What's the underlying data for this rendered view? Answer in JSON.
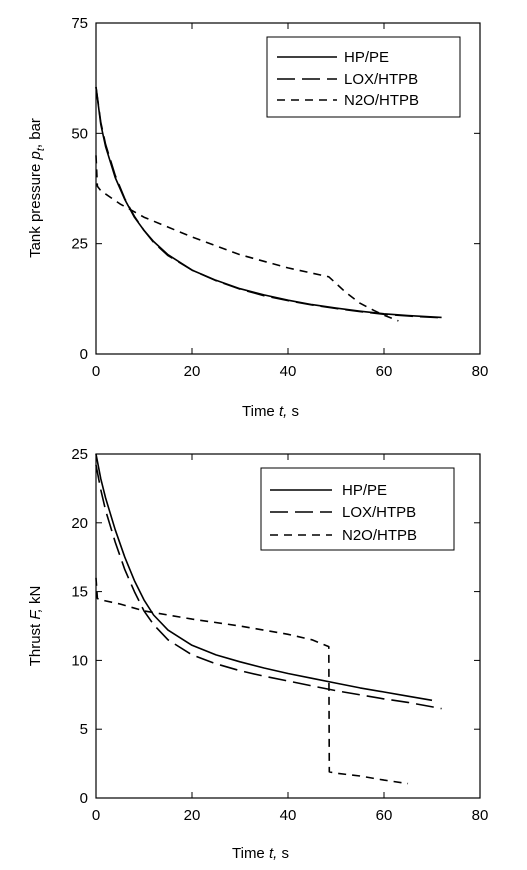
{
  "chart_data": [
    {
      "type": "line",
      "xlabel_prefix": "Time",
      "xlabel_var": "t,",
      "xlabel_unit": "s",
      "ylabel_prefix": "Tank pressure",
      "ylabel_var": "p",
      "ylabel_sub": "t",
      "ylabel_unit": ", bar",
      "xlim": [
        0,
        80
      ],
      "ylim": [
        0,
        75
      ],
      "xticks": [
        0,
        20,
        40,
        60,
        80
      ],
      "yticks": [
        0,
        25,
        50,
        75
      ],
      "grid": false,
      "legend_position": "top-right",
      "series": [
        {
          "name": "HP/PE",
          "style": "solid",
          "x": [
            0,
            1,
            2,
            4,
            6,
            8,
            10,
            12,
            15,
            20,
            25,
            30,
            35,
            40,
            45,
            50,
            55,
            60,
            65,
            72
          ],
          "y": [
            60.5,
            52,
            47,
            40,
            35,
            31,
            28,
            25.5,
            22.5,
            19,
            16.7,
            14.8,
            13.4,
            12.2,
            11.2,
            10.4,
            9.7,
            9.1,
            8.7,
            8.3
          ]
        },
        {
          "name": "LOX/HTPB",
          "style": "long-dash",
          "x": [
            0,
            1,
            2,
            4,
            6,
            8,
            10,
            12,
            15,
            20,
            25,
            30,
            35,
            40,
            45,
            50,
            55,
            60,
            65,
            72
          ],
          "y": [
            60.5,
            52.5,
            47.5,
            40.5,
            35.2,
            31.2,
            28,
            25.3,
            22.3,
            19,
            16.6,
            14.7,
            13.2,
            12.1,
            11.1,
            10.3,
            9.6,
            9,
            8.6,
            8.2
          ]
        },
        {
          "name": "N2O/HTPB",
          "style": "short-dash",
          "x": [
            0,
            0.3,
            1,
            5,
            10,
            20,
            30,
            40,
            48.5,
            52,
            55,
            58,
            60,
            63
          ],
          "y": [
            45,
            38,
            37,
            34,
            31,
            26.5,
            22.5,
            19.5,
            17.5,
            14,
            11.5,
            9.8,
            8.8,
            7.5
          ]
        }
      ]
    },
    {
      "type": "line",
      "xlabel_prefix": "Time",
      "xlabel_var": "t,",
      "xlabel_unit": "s",
      "ylabel_prefix": "Thrust",
      "ylabel_var": "F,",
      "ylabel_unit": "kN",
      "xlim": [
        0,
        80
      ],
      "ylim": [
        0,
        25
      ],
      "xticks": [
        0,
        20,
        40,
        60,
        80
      ],
      "yticks": [
        0,
        5,
        10,
        15,
        20,
        25
      ],
      "grid": false,
      "legend_position": "top-right",
      "series": [
        {
          "name": "HP/PE",
          "style": "solid",
          "x": [
            0,
            1,
            2,
            4,
            6,
            8,
            10,
            12,
            15,
            20,
            25,
            30,
            35,
            40,
            45,
            50,
            55,
            60,
            65,
            70
          ],
          "y": [
            25,
            23.2,
            21.8,
            19.5,
            17.5,
            15.8,
            14.4,
            13.3,
            12.2,
            11.1,
            10.4,
            9.9,
            9.45,
            9.05,
            8.7,
            8.35,
            8.0,
            7.7,
            7.4,
            7.1
          ]
        },
        {
          "name": "LOX/HTPB",
          "style": "long-dash",
          "x": [
            0,
            1,
            2,
            4,
            6,
            8,
            10,
            12,
            15,
            20,
            25,
            30,
            35,
            40,
            45,
            50,
            55,
            60,
            65,
            72
          ],
          "y": [
            24.2,
            22.4,
            20.9,
            18.6,
            16.6,
            15,
            13.6,
            12.6,
            11.5,
            10.4,
            9.75,
            9.25,
            8.85,
            8.5,
            8.15,
            7.8,
            7.5,
            7.2,
            6.95,
            6.5
          ]
        },
        {
          "name": "N2O/HTPB",
          "style": "short-dash",
          "x": [
            0,
            0.3,
            1,
            5,
            10,
            20,
            30,
            40,
            45,
            48.5,
            48.6,
            50,
            55,
            60,
            65
          ],
          "y": [
            16,
            14.5,
            14.4,
            14.1,
            13.6,
            13,
            12.5,
            11.9,
            11.5,
            11,
            1.9,
            1.8,
            1.6,
            1.3,
            1.05
          ]
        }
      ]
    }
  ]
}
